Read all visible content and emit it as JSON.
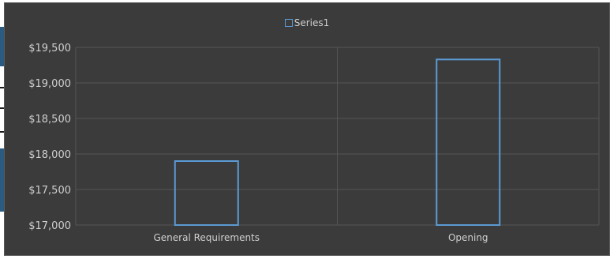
{
  "chart_data": {
    "type": "bar",
    "categories": [
      "General Requirements",
      "Opening"
    ],
    "series": [
      {
        "name": "Series1",
        "values": [
          17900,
          19330
        ]
      }
    ],
    "title": "",
    "xlabel": "",
    "ylabel": "",
    "ylim": [
      17000,
      19500
    ],
    "yticks": [
      "$17,000",
      "$17,500",
      "$18,000",
      "$18,500",
      "$19,000",
      "$19,500"
    ],
    "ytick_values": [
      17000,
      17500,
      18000,
      18500,
      19000,
      19500
    ],
    "grid": true,
    "legend_position": "top",
    "colors": {
      "background": "#3b3b3b",
      "bar_outline": "#5b9bd5",
      "gridline": "#555555",
      "text": "#cfcfcf"
    }
  }
}
